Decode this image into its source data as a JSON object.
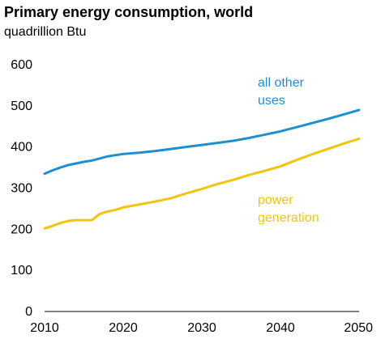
{
  "chart_data": {
    "type": "line",
    "title": "Primary energy consumption, world",
    "subtitle": "quadrillion Btu",
    "xlabel": "",
    "ylabel": "",
    "xlim": [
      2010,
      2050
    ],
    "ylim": [
      0,
      600
    ],
    "x_ticks": [
      2010,
      2020,
      2030,
      2040,
      2050
    ],
    "y_ticks": [
      0,
      100,
      200,
      300,
      400,
      500,
      600
    ],
    "grid": false,
    "series": [
      {
        "label_lines": [
          "all other",
          "uses"
        ],
        "color": "#1f8fd0",
        "points": [
          [
            2010,
            335
          ],
          [
            2011,
            343
          ],
          [
            2012,
            350
          ],
          [
            2013,
            356
          ],
          [
            2014,
            360
          ],
          [
            2015,
            364
          ],
          [
            2016,
            367
          ],
          [
            2017,
            372
          ],
          [
            2018,
            377
          ],
          [
            2019,
            380
          ],
          [
            2020,
            383
          ],
          [
            2022,
            386
          ],
          [
            2024,
            390
          ],
          [
            2026,
            395
          ],
          [
            2028,
            400
          ],
          [
            2030,
            405
          ],
          [
            2032,
            410
          ],
          [
            2034,
            415
          ],
          [
            2036,
            422
          ],
          [
            2038,
            430
          ],
          [
            2040,
            438
          ],
          [
            2042,
            448
          ],
          [
            2044,
            458
          ],
          [
            2046,
            468
          ],
          [
            2048,
            479
          ],
          [
            2050,
            490
          ]
        ]
      },
      {
        "label_lines": [
          "power",
          "generation"
        ],
        "color": "#f2c40f",
        "points": [
          [
            2010,
            202
          ],
          [
            2011,
            208
          ],
          [
            2012,
            215
          ],
          [
            2013,
            220
          ],
          [
            2014,
            222
          ],
          [
            2015,
            222
          ],
          [
            2016,
            222
          ],
          [
            2017,
            237
          ],
          [
            2018,
            243
          ],
          [
            2019,
            247
          ],
          [
            2020,
            253
          ],
          [
            2022,
            260
          ],
          [
            2024,
            267
          ],
          [
            2026,
            275
          ],
          [
            2028,
            287
          ],
          [
            2030,
            298
          ],
          [
            2032,
            310
          ],
          [
            2034,
            320
          ],
          [
            2036,
            332
          ],
          [
            2038,
            342
          ],
          [
            2040,
            353
          ],
          [
            2042,
            368
          ],
          [
            2044,
            382
          ],
          [
            2046,
            395
          ],
          [
            2048,
            408
          ],
          [
            2050,
            420
          ]
        ]
      }
    ]
  }
}
